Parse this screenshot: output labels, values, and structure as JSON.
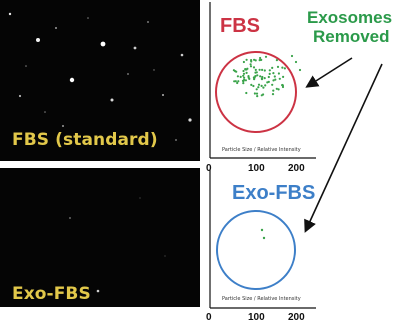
{
  "top_panel": {
    "label": "FBS (standard)"
  },
  "bottom_panel": {
    "label": "Exo-FBS"
  },
  "fbs_plot": {
    "title": "FBS",
    "x_caption": "Particle Size / Relative Intensity",
    "ticks": [
      "0",
      "100",
      "200"
    ]
  },
  "exo_plot": {
    "title": "Exo-FBS",
    "x_caption": "Particle Size / Relative Intensity",
    "ticks": [
      "0",
      "100",
      "200"
    ]
  },
  "annotation": {
    "line1": "Exosomes",
    "line2": "Removed"
  },
  "colors": {
    "panel_label": "#e2c84a",
    "fbs": "#cc3344",
    "exo": "#3d7fc8",
    "annotation": "#2b9a4a",
    "dots": "#3aa34a"
  }
}
